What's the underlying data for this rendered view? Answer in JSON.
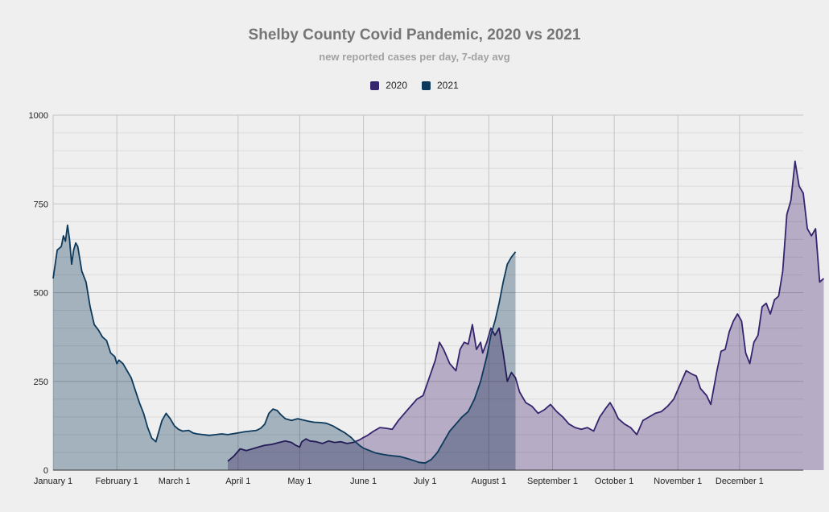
{
  "chart_data": {
    "type": "area",
    "title": "Shelby County Covid Pandemic, 2020 vs 2021",
    "subtitle": "new reported cases per day, 7-day avg",
    "ylim": [
      0,
      1000
    ],
    "yticks": [
      0,
      250,
      500,
      750,
      1000
    ],
    "x_domain_days": [
      0,
      365
    ],
    "xticks": [
      {
        "label": "January 1",
        "day": 0
      },
      {
        "label": "February 1",
        "day": 31
      },
      {
        "label": "March 1",
        "day": 59
      },
      {
        "label": "April 1",
        "day": 90
      },
      {
        "label": "May 1",
        "day": 120
      },
      {
        "label": "June 1",
        "day": 151
      },
      {
        "label": "July 1",
        "day": 181
      },
      {
        "label": "August 1",
        "day": 212
      },
      {
        "label": "September 1",
        "day": 243
      },
      {
        "label": "October 1",
        "day": 273
      },
      {
        "label": "November 1",
        "day": 304
      },
      {
        "label": "December 1",
        "day": 334
      }
    ],
    "grid": true,
    "legend_position": "top-center",
    "series": [
      {
        "name": "2020",
        "color": "#35246e",
        "fill": "#b4a8c8",
        "points": [
          [
            85,
            25
          ],
          [
            88,
            40
          ],
          [
            91,
            60
          ],
          [
            94,
            55
          ],
          [
            97,
            60
          ],
          [
            100,
            65
          ],
          [
            103,
            70
          ],
          [
            106,
            72
          ],
          [
            110,
            78
          ],
          [
            113,
            82
          ],
          [
            116,
            78
          ],
          [
            118,
            70
          ],
          [
            120,
            65
          ],
          [
            121,
            80
          ],
          [
            123,
            88
          ],
          [
            125,
            82
          ],
          [
            128,
            80
          ],
          [
            131,
            75
          ],
          [
            134,
            82
          ],
          [
            137,
            78
          ],
          [
            140,
            80
          ],
          [
            143,
            75
          ],
          [
            146,
            78
          ],
          [
            149,
            85
          ],
          [
            151,
            92
          ],
          [
            153,
            98
          ],
          [
            156,
            110
          ],
          [
            159,
            120
          ],
          [
            162,
            118
          ],
          [
            165,
            115
          ],
          [
            168,
            140
          ],
          [
            171,
            160
          ],
          [
            174,
            180
          ],
          [
            177,
            200
          ],
          [
            180,
            210
          ],
          [
            183,
            260
          ],
          [
            186,
            310
          ],
          [
            188,
            360
          ],
          [
            190,
            340
          ],
          [
            193,
            300
          ],
          [
            196,
            280
          ],
          [
            198,
            340
          ],
          [
            200,
            360
          ],
          [
            202,
            355
          ],
          [
            204,
            410
          ],
          [
            206,
            340
          ],
          [
            208,
            360
          ],
          [
            209,
            330
          ],
          [
            211,
            360
          ],
          [
            213,
            400
          ],
          [
            215,
            380
          ],
          [
            217,
            400
          ],
          [
            219,
            330
          ],
          [
            221,
            250
          ],
          [
            223,
            275
          ],
          [
            225,
            260
          ],
          [
            227,
            220
          ],
          [
            230,
            190
          ],
          [
            233,
            180
          ],
          [
            236,
            160
          ],
          [
            239,
            170
          ],
          [
            242,
            185
          ],
          [
            245,
            165
          ],
          [
            248,
            150
          ],
          [
            251,
            130
          ],
          [
            254,
            120
          ],
          [
            257,
            115
          ],
          [
            260,
            120
          ],
          [
            263,
            110
          ],
          [
            266,
            150
          ],
          [
            269,
            175
          ],
          [
            271,
            190
          ],
          [
            273,
            170
          ],
          [
            275,
            145
          ],
          [
            278,
            130
          ],
          [
            281,
            120
          ],
          [
            284,
            100
          ],
          [
            287,
            140
          ],
          [
            290,
            150
          ],
          [
            293,
            160
          ],
          [
            296,
            165
          ],
          [
            299,
            180
          ],
          [
            302,
            200
          ],
          [
            305,
            240
          ],
          [
            308,
            280
          ],
          [
            311,
            270
          ],
          [
            313,
            265
          ],
          [
            315,
            230
          ],
          [
            318,
            210
          ],
          [
            320,
            185
          ],
          [
            323,
            280
          ],
          [
            325,
            335
          ],
          [
            327,
            340
          ],
          [
            329,
            390
          ],
          [
            331,
            420
          ],
          [
            333,
            440
          ],
          [
            335,
            420
          ],
          [
            337,
            330
          ],
          [
            339,
            300
          ],
          [
            341,
            360
          ],
          [
            343,
            380
          ],
          [
            345,
            460
          ],
          [
            347,
            470
          ],
          [
            349,
            440
          ],
          [
            351,
            480
          ],
          [
            353,
            490
          ],
          [
            355,
            560
          ],
          [
            357,
            720
          ],
          [
            359,
            760
          ],
          [
            361,
            870
          ],
          [
            363,
            800
          ],
          [
            365,
            780
          ],
          [
            367,
            680
          ],
          [
            369,
            660
          ],
          [
            371,
            680
          ],
          [
            373,
            530
          ],
          [
            375,
            540
          ]
        ]
      },
      {
        "name": "2021",
        "color": "#0d3a5c",
        "fill": "#9cb0be",
        "points": [
          [
            0,
            540
          ],
          [
            2,
            620
          ],
          [
            4,
            630
          ],
          [
            5,
            660
          ],
          [
            6,
            645
          ],
          [
            7,
            690
          ],
          [
            8,
            650
          ],
          [
            9,
            580
          ],
          [
            10,
            620
          ],
          [
            11,
            640
          ],
          [
            12,
            630
          ],
          [
            14,
            560
          ],
          [
            16,
            530
          ],
          [
            18,
            460
          ],
          [
            20,
            410
          ],
          [
            22,
            395
          ],
          [
            24,
            375
          ],
          [
            26,
            365
          ],
          [
            28,
            330
          ],
          [
            30,
            320
          ],
          [
            31,
            300
          ],
          [
            32,
            310
          ],
          [
            34,
            300
          ],
          [
            36,
            280
          ],
          [
            38,
            260
          ],
          [
            40,
            225
          ],
          [
            42,
            190
          ],
          [
            44,
            160
          ],
          [
            46,
            120
          ],
          [
            48,
            90
          ],
          [
            50,
            80
          ],
          [
            51,
            100
          ],
          [
            53,
            140
          ],
          [
            55,
            160
          ],
          [
            57,
            145
          ],
          [
            59,
            125
          ],
          [
            61,
            115
          ],
          [
            63,
            110
          ],
          [
            66,
            112
          ],
          [
            68,
            105
          ],
          [
            70,
            102
          ],
          [
            73,
            100
          ],
          [
            76,
            98
          ],
          [
            79,
            100
          ],
          [
            82,
            102
          ],
          [
            85,
            100
          ],
          [
            88,
            103
          ],
          [
            90,
            105
          ],
          [
            93,
            108
          ],
          [
            96,
            110
          ],
          [
            99,
            112
          ],
          [
            101,
            118
          ],
          [
            103,
            130
          ],
          [
            105,
            160
          ],
          [
            107,
            172
          ],
          [
            109,
            168
          ],
          [
            111,
            155
          ],
          [
            113,
            145
          ],
          [
            116,
            140
          ],
          [
            119,
            145
          ],
          [
            121,
            142
          ],
          [
            124,
            138
          ],
          [
            127,
            135
          ],
          [
            130,
            134
          ],
          [
            133,
            132
          ],
          [
            136,
            125
          ],
          [
            139,
            115
          ],
          [
            142,
            105
          ],
          [
            145,
            92
          ],
          [
            147,
            80
          ],
          [
            149,
            70
          ],
          [
            151,
            62
          ],
          [
            154,
            55
          ],
          [
            157,
            48
          ],
          [
            160,
            45
          ],
          [
            163,
            42
          ],
          [
            166,
            40
          ],
          [
            169,
            38
          ],
          [
            172,
            33
          ],
          [
            175,
            28
          ],
          [
            178,
            22
          ],
          [
            181,
            20
          ],
          [
            184,
            30
          ],
          [
            187,
            50
          ],
          [
            190,
            80
          ],
          [
            193,
            110
          ],
          [
            196,
            130
          ],
          [
            199,
            150
          ],
          [
            202,
            165
          ],
          [
            205,
            200
          ],
          [
            208,
            250
          ],
          [
            211,
            320
          ],
          [
            213,
            380
          ],
          [
            215,
            420
          ],
          [
            217,
            470
          ],
          [
            219,
            530
          ],
          [
            221,
            580
          ],
          [
            223,
            600
          ],
          [
            225,
            615
          ]
        ]
      }
    ]
  },
  "legend": [
    {
      "label": "2020",
      "color": "#35246e"
    },
    {
      "label": "2021",
      "color": "#0d3a5c"
    }
  ]
}
